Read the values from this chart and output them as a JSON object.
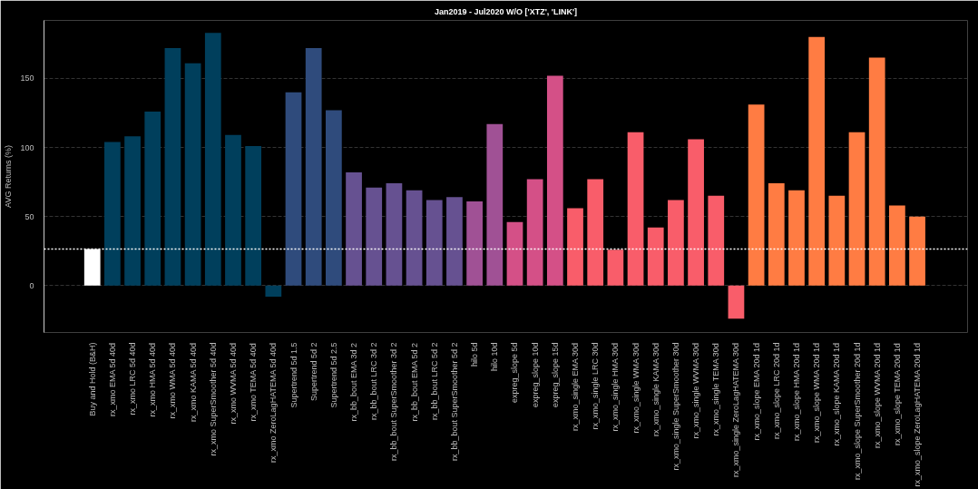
{
  "chart_data": {
    "type": "bar",
    "title": "Jan2019 - Jul2020 W/O ['XTZ', 'LINK']",
    "ylabel": "AVG Returns (%)",
    "categories": [
      "Buy and Hold (B&H)",
      "rx_xmo EMA 5d 40d",
      "rx_xmo LRC 5d 40d",
      "rx_xmo HMA 5d 40d",
      "rx_xmo WMA 5d 40d",
      "rx_xmo KAMA 5d 40d",
      "rx_xmo SuperSmoother 5d 40d",
      "rx_xmo WVMA 5d 40d",
      "rx_xmo TEMA 5d 40d",
      "rx_xmo ZeroLagHATEMA 5d 40d",
      "Supertrend 5d 1.5",
      "Supertrend 5d 2",
      "Supertrend 5d 2.5",
      "rx_bb_bout EMA 3d 2",
      "rx_bb_bout LRC 3d 2",
      "rx_bb_bout SuperSmoother 3d 2",
      "rx_bb_bout EMA 5d 2",
      "rx_bb_bout LRC 5d 2",
      "rx_bb_bout SuperSmoother 5d 2",
      "hilo 5d",
      "hilo 10d",
      "expreg_slope 5d",
      "expreg_slope 10d",
      "expreg_slope 15d",
      "rx_xmo_single EMA 30d",
      "rx_xmo_single LRC 30d",
      "rx_xmo_single HMA 30d",
      "rx_xmo_single WMA 30d",
      "rx_xmo_single KAMA 30d",
      "rx_xmo_single SuperSmoother 30d",
      "rx_xmo_single WVMA 30d",
      "rx_xmo_single TEMA 30d",
      "rx_xmo_single ZeroLagHATEMA 30d",
      "rx_xmo_slope EMA 20d 1d",
      "rx_xmo_slope LRC 20d 1d",
      "rx_xmo_slope HMA 20d 1d",
      "rx_xmo_slope WMA 20d 1d",
      "rx_xmo_slope KAMA 20d 1d",
      "rx_xmo_slope SuperSmoother 20d 1d",
      "rx_xmo_slope WVMA 20d 1d",
      "rx_xmo_slope TEMA 20d 1d",
      "rx_xmo_slope ZeroLagHATEMA 20d 1d"
    ],
    "values": [
      26.5,
      104,
      108,
      126,
      172,
      161,
      183,
      109,
      101,
      -8,
      140,
      172,
      127,
      82,
      71,
      74,
      69,
      62,
      64,
      61,
      117,
      46,
      77,
      152,
      56,
      77,
      26,
      111,
      42,
      62,
      106,
      65,
      -24,
      131,
      74,
      69,
      180,
      65,
      111,
      165,
      58,
      50
    ],
    "colors": [
      "#ffffff",
      "#003f5c",
      "#003f5c",
      "#003f5c",
      "#003f5c",
      "#003f5c",
      "#003f5c",
      "#003f5c",
      "#003f5c",
      "#003f5c",
      "#2f4b7c",
      "#2f4b7c",
      "#2f4b7c",
      "#665191",
      "#665191",
      "#665191",
      "#665191",
      "#665191",
      "#665191",
      "#a05195",
      "#a05195",
      "#d45087",
      "#d45087",
      "#d45087",
      "#f95d6a",
      "#f95d6a",
      "#f95d6a",
      "#f95d6a",
      "#f95d6a",
      "#f95d6a",
      "#f95d6a",
      "#f95d6a",
      "#f95d6a",
      "#ff7c43",
      "#ff7c43",
      "#ff7c43",
      "#ff7c43",
      "#ff7c43",
      "#ff7c43",
      "#ff7c43",
      "#ff7c43",
      "#ff7c43"
    ],
    "ylim": [
      -34,
      192
    ],
    "yticks": [
      0,
      50,
      100,
      150
    ],
    "grid": "y",
    "ref_lines": [
      {
        "axis": "y",
        "value": 26.5,
        "color": "#ffffff",
        "line_style": "dotted"
      }
    ]
  }
}
